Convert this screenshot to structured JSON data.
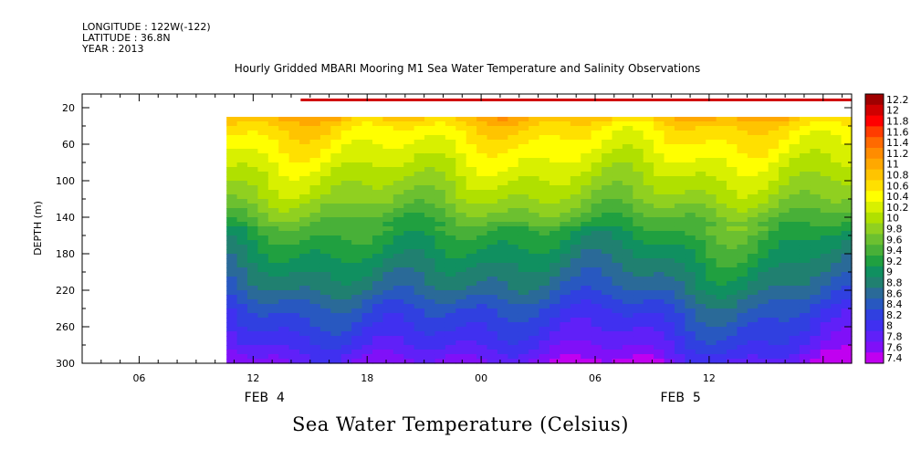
{
  "header": {
    "longitude": "LONGITUDE : 122W(-122)",
    "latitude": "LATITUDE : 36.8N",
    "year": "YEAR : 2013"
  },
  "chart_data": {
    "type": "heatmap",
    "title": "Hourly Gridded MBARI Mooring M1 Sea Water Temperature and Salinity Observations",
    "caption": "Sea Water Temperature (Celsius)",
    "ylabel": "DEPTH (m)",
    "x_ticks": [
      "06",
      "12",
      "18",
      "00",
      "06",
      "12"
    ],
    "date_labels": [
      "FEB  4",
      "FEB  5"
    ],
    "xlim_hours": [
      3,
      43.5
    ],
    "ylim": [
      300,
      5
    ],
    "y_ticks": [
      20,
      60,
      100,
      140,
      180,
      220,
      260,
      300
    ],
    "data_start_hour": 10.6,
    "surface_start_hour": 14.5,
    "surface_depth_range": [
      10,
      13
    ],
    "surface_temperature": 12.1,
    "upper_depth_of_profile": 30,
    "grid": false,
    "legend_position": "right",
    "colorbar_levels": [
      "12.2",
      "12",
      "11.8",
      "11.6",
      "11.4",
      "11.2",
      "11",
      "10.8",
      "10.6",
      "10.4",
      "10.2",
      "10",
      "9.8",
      "9.6",
      "9.4",
      "9.2",
      "9",
      "8.8",
      "8.6",
      "8.4",
      "8.2",
      "8",
      "7.8",
      "7.6",
      "7.4"
    ],
    "colorbar_colors": [
      "#a00000",
      "#d00000",
      "#ff0000",
      "#ff3c00",
      "#ff6a00",
      "#ff8c00",
      "#ffa800",
      "#ffc400",
      "#ffe000",
      "#ffff00",
      "#d8f000",
      "#b0e000",
      "#90d020",
      "#6cc030",
      "#48b038",
      "#20a040",
      "#109060",
      "#208070",
      "#2a6a98",
      "#2858c0",
      "#3040e0",
      "#4030f0",
      "#6020f8",
      "#8010f8",
      "#c000f0"
    ],
    "depth_profile_example": {
      "depths": [
        30,
        40,
        60,
        80,
        100,
        120,
        140,
        160,
        180,
        200,
        220,
        240,
        260,
        280,
        300
      ],
      "temperature": [
        10.9,
        10.6,
        10.4,
        10.2,
        10.0,
        9.8,
        9.5,
        9.2,
        9.0,
        8.8,
        8.6,
        8.3,
        8.1,
        7.9,
        7.6
      ]
    }
  }
}
